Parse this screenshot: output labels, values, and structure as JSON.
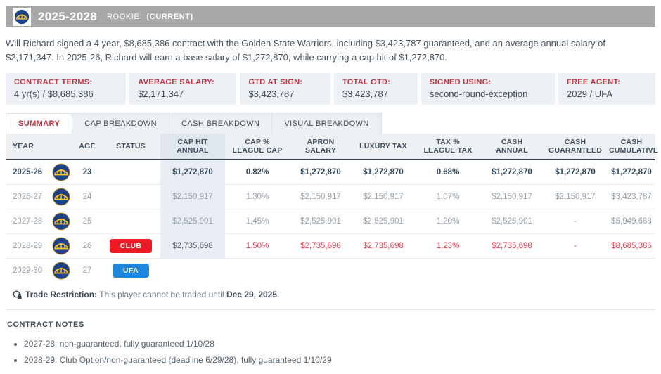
{
  "header": {
    "title": "2025-2028",
    "contract_type": "ROOKIE",
    "current_tag": "(CURRENT)",
    "team_logo": "golden-state-warriors-logo",
    "bar_color": "#a8a8a8"
  },
  "summary_paragraph": "Will Richard signed a 4 year, $8,685,386 contract with the Golden State Warriors, including $3,423,787 guaranteed, and an average annual salary of $2,171,347. In 2025-26, Richard will earn a base salary of $1,272,870, while carrying a cap hit of $1,272,870.",
  "contract_terms": [
    {
      "label": "CONTRACT TERMS:",
      "value": "4 yr(s) / $8,685,386"
    },
    {
      "label": "AVERAGE SALARY:",
      "value": "$2,171,347"
    },
    {
      "label": "GTD AT SIGN:",
      "value": "$3,423,787"
    },
    {
      "label": "TOTAL GTD:",
      "value": "$3,423,787"
    },
    {
      "label": "SIGNED USING:",
      "value": "second-round-exception"
    },
    {
      "label": "FREE AGENT:",
      "value": "2029 / UFA"
    }
  ],
  "tabs": [
    {
      "label": "SUMMARY",
      "active": true
    },
    {
      "label": "CAP BREAKDOWN",
      "active": false
    },
    {
      "label": "CASH BREAKDOWN",
      "active": false
    },
    {
      "label": "VISUAL BREAKDOWN",
      "active": false
    }
  ],
  "table": {
    "columns": [
      [
        "YEAR"
      ],
      [
        "AGE"
      ],
      [
        "STATUS"
      ],
      [
        "CAP HIT",
        "ANNUAL"
      ],
      [
        "CAP %",
        "LEAGUE CAP"
      ],
      [
        "APRON SALARY"
      ],
      [
        "LUXURY TAX"
      ],
      [
        "TAX %",
        "LEAGUE TAX"
      ],
      [
        "CASH",
        "ANNUAL"
      ],
      [
        "CASH",
        "GUARANTEED"
      ],
      [
        "CASH",
        "CUMULATIVE"
      ]
    ],
    "rows": [
      {
        "year": "2025-26",
        "age": "23",
        "status": null,
        "style": "current",
        "values": [
          "$1,272,870",
          "0.82%",
          "$1,272,870",
          "$1,272,870",
          "0.68%",
          "$1,272,870",
          "$1,272,870",
          "$1,272,870"
        ]
      },
      {
        "year": "2026-27",
        "age": "24",
        "status": null,
        "style": "future",
        "values": [
          "$2,150,917",
          "1.30%",
          "$2,150,917",
          "$2,150,917",
          "1.07%",
          "$2,150,917",
          "$2,150,917",
          "$3,423,787"
        ]
      },
      {
        "year": "2027-28",
        "age": "25",
        "status": null,
        "style": "future",
        "values": [
          "$2,525,901",
          "1.45%",
          "$2,525,901",
          "$2,525,901",
          "1.20%",
          "$2,525,901",
          "-",
          "$5,949,688"
        ]
      },
      {
        "year": "2028-29",
        "age": "26",
        "status": "CLUB",
        "status_color": "#ed1c24",
        "style": "option",
        "values": [
          "$2,735,698",
          "1.50%",
          "$2,735,698",
          "$2,735,698",
          "1.23%",
          "$2,735,698",
          "-",
          "$8,685,386"
        ]
      },
      {
        "year": "2029-30",
        "age": "27",
        "status": "UFA",
        "status_color": "#1e87dd",
        "style": "last",
        "values": [
          "",
          "",
          "",
          "",
          "",
          "",
          "",
          ""
        ]
      }
    ]
  },
  "trade_restriction": {
    "label": "Trade Restriction:",
    "text": "This player cannot be traded until",
    "date": "Dec 29, 2025",
    "period": "."
  },
  "contract_notes": {
    "title": "CONTRACT NOTES",
    "notes": [
      "2027-28: non-guaranteed, fully guaranteed 1/10/28",
      "2028-29: Club Option/non-guaranteed (deadline 6/29/28), fully guaranteed 1/10/29"
    ]
  },
  "colors": {
    "accent_red": "#c8303f",
    "row_option_red": "#e4404d",
    "badge_club": "#ed1c24",
    "badge_ufa": "#1e87dd",
    "team_navy": "#1d428a",
    "team_gold": "#ffc72c"
  }
}
